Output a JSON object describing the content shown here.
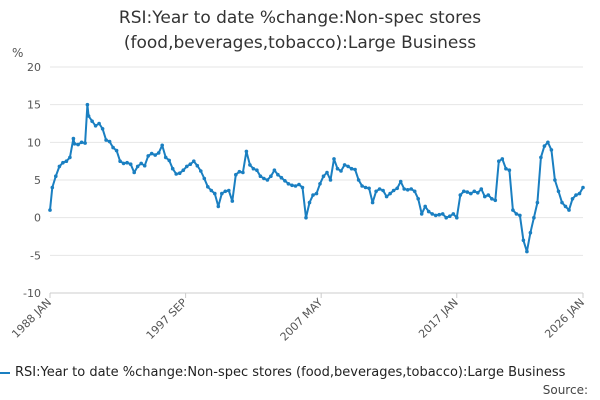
{
  "title_lines": [
    "RSI:Year to date %change:Non-spec stores",
    "(food,beverages,tobacco):Large Business"
  ],
  "source_label": "Source:",
  "colors": {
    "series": "#1a7fc1",
    "grid": "#e6e6e6",
    "axis_text": "#555555"
  },
  "chart_data": {
    "type": "line",
    "title": "RSI:Year to date %change:Non-spec stores (food,beverages,tobacco):Large Business",
    "ylabel": "%",
    "ylim": [
      -10,
      20
    ],
    "yticks": [
      -10,
      -5,
      0,
      5,
      10,
      15,
      20
    ],
    "xlim": [
      "1988-01",
      "2026-01"
    ],
    "xticks": [
      {
        "date": "1988-01",
        "label": "1988 JAN"
      },
      {
        "date": "1997-09",
        "label": "1997 SEP"
      },
      {
        "date": "2007-05",
        "label": "2007 MAY"
      },
      {
        "date": "2017-01",
        "label": "2017 JAN"
      },
      {
        "date": "2026-01",
        "label": "2026 JAN"
      }
    ],
    "grid": true,
    "legend_position": "bottom",
    "series": [
      {
        "name": "RSI:Year to date %change:Non-spec stores (food,beverages,tobacco):Large Business",
        "color": "#1a7fc1",
        "points": [
          [
            "1988-01",
            1.0
          ],
          [
            "1988-03",
            4.0
          ],
          [
            "1988-06",
            5.5
          ],
          [
            "1988-09",
            6.8
          ],
          [
            "1988-12",
            7.3
          ],
          [
            "1989-03",
            7.5
          ],
          [
            "1989-06",
            8.0
          ],
          [
            "1989-09",
            10.5
          ],
          [
            "1989-10",
            9.8
          ],
          [
            "1990-01",
            9.7
          ],
          [
            "1990-04",
            10.0
          ],
          [
            "1990-07",
            9.9
          ],
          [
            "1990-09",
            15.0
          ],
          [
            "1990-10",
            13.5
          ],
          [
            "1991-01",
            12.8
          ],
          [
            "1991-04",
            12.2
          ],
          [
            "1991-07",
            12.5
          ],
          [
            "1991-10",
            11.8
          ],
          [
            "1992-01",
            10.3
          ],
          [
            "1992-04",
            10.1
          ],
          [
            "1992-07",
            9.3
          ],
          [
            "1992-10",
            8.9
          ],
          [
            "1993-01",
            7.5
          ],
          [
            "1993-04",
            7.2
          ],
          [
            "1993-07",
            7.3
          ],
          [
            "1993-10",
            7.1
          ],
          [
            "1994-01",
            6.0
          ],
          [
            "1994-04",
            6.8
          ],
          [
            "1994-07",
            7.2
          ],
          [
            "1994-10",
            6.9
          ],
          [
            "1995-01",
            8.2
          ],
          [
            "1995-04",
            8.5
          ],
          [
            "1995-07",
            8.3
          ],
          [
            "1995-10",
            8.6
          ],
          [
            "1996-01",
            9.6
          ],
          [
            "1996-04",
            8.0
          ],
          [
            "1996-07",
            7.6
          ],
          [
            "1996-10",
            6.5
          ],
          [
            "1997-01",
            5.8
          ],
          [
            "1997-04",
            5.9
          ],
          [
            "1997-07",
            6.3
          ],
          [
            "1997-10",
            6.8
          ],
          [
            "1998-01",
            7.1
          ],
          [
            "1998-04",
            7.5
          ],
          [
            "1998-07",
            6.9
          ],
          [
            "1998-10",
            6.2
          ],
          [
            "1999-01",
            5.2
          ],
          [
            "1999-04",
            4.1
          ],
          [
            "1999-07",
            3.6
          ],
          [
            "1999-10",
            3.2
          ],
          [
            "2000-01",
            1.5
          ],
          [
            "2000-04",
            3.2
          ],
          [
            "2000-07",
            3.5
          ],
          [
            "2000-10",
            3.6
          ],
          [
            "2001-01",
            2.2
          ],
          [
            "2001-04",
            5.7
          ],
          [
            "2001-07",
            6.1
          ],
          [
            "2001-10",
            6.0
          ],
          [
            "2002-01",
            8.8
          ],
          [
            "2002-04",
            7.0
          ],
          [
            "2002-07",
            6.5
          ],
          [
            "2002-10",
            6.3
          ],
          [
            "2003-01",
            5.5
          ],
          [
            "2003-04",
            5.2
          ],
          [
            "2003-07",
            5.0
          ],
          [
            "2003-10",
            5.5
          ],
          [
            "2004-01",
            6.3
          ],
          [
            "2004-04",
            5.7
          ],
          [
            "2004-07",
            5.3
          ],
          [
            "2004-10",
            4.9
          ],
          [
            "2005-01",
            4.5
          ],
          [
            "2005-04",
            4.3
          ],
          [
            "2005-07",
            4.2
          ],
          [
            "2005-10",
            4.4
          ],
          [
            "2006-01",
            4.0
          ],
          [
            "2006-04",
            0.0
          ],
          [
            "2006-07",
            2.0
          ],
          [
            "2006-10",
            3.0
          ],
          [
            "2007-01",
            3.2
          ],
          [
            "2007-04",
            4.5
          ],
          [
            "2007-07",
            5.5
          ],
          [
            "2007-10",
            6.0
          ],
          [
            "2008-01",
            5.0
          ],
          [
            "2008-04",
            7.8
          ],
          [
            "2008-07",
            6.5
          ],
          [
            "2008-10",
            6.2
          ],
          [
            "2009-01",
            7.0
          ],
          [
            "2009-04",
            6.8
          ],
          [
            "2009-07",
            6.5
          ],
          [
            "2009-10",
            6.4
          ],
          [
            "2010-01",
            5.0
          ],
          [
            "2010-04",
            4.2
          ],
          [
            "2010-07",
            4.0
          ],
          [
            "2010-10",
            3.9
          ],
          [
            "2011-01",
            2.0
          ],
          [
            "2011-04",
            3.5
          ],
          [
            "2011-07",
            3.8
          ],
          [
            "2011-10",
            3.6
          ],
          [
            "2012-01",
            2.8
          ],
          [
            "2012-04",
            3.2
          ],
          [
            "2012-07",
            3.6
          ],
          [
            "2012-10",
            3.9
          ],
          [
            "2013-01",
            4.8
          ],
          [
            "2013-04",
            3.8
          ],
          [
            "2013-07",
            3.7
          ],
          [
            "2013-10",
            3.8
          ],
          [
            "2014-01",
            3.5
          ],
          [
            "2014-04",
            2.5
          ],
          [
            "2014-07",
            0.5
          ],
          [
            "2014-10",
            1.5
          ],
          [
            "2015-01",
            0.8
          ],
          [
            "2015-04",
            0.5
          ],
          [
            "2015-07",
            0.3
          ],
          [
            "2015-10",
            0.4
          ],
          [
            "2016-01",
            0.5
          ],
          [
            "2016-04",
            0.0
          ],
          [
            "2016-07",
            0.2
          ],
          [
            "2016-10",
            0.5
          ],
          [
            "2017-01",
            0.0
          ],
          [
            "2017-04",
            3.0
          ],
          [
            "2017-07",
            3.5
          ],
          [
            "2017-10",
            3.4
          ],
          [
            "2018-01",
            3.2
          ],
          [
            "2018-04",
            3.5
          ],
          [
            "2018-07",
            3.3
          ],
          [
            "2018-10",
            3.8
          ],
          [
            "2019-01",
            2.8
          ],
          [
            "2019-04",
            3.0
          ],
          [
            "2019-07",
            2.5
          ],
          [
            "2019-10",
            2.3
          ],
          [
            "2020-01",
            7.5
          ],
          [
            "2020-04",
            7.8
          ],
          [
            "2020-07",
            6.5
          ],
          [
            "2020-10",
            6.3
          ],
          [
            "2021-01",
            1.0
          ],
          [
            "2021-04",
            0.5
          ],
          [
            "2021-07",
            0.3
          ],
          [
            "2021-10",
            -3.0
          ],
          [
            "2022-01",
            -4.5
          ],
          [
            "2022-04",
            -2.0
          ],
          [
            "2022-07",
            0.0
          ],
          [
            "2022-10",
            2.0
          ],
          [
            "2023-01",
            8.0
          ],
          [
            "2023-04",
            9.5
          ],
          [
            "2023-07",
            10.0
          ],
          [
            "2023-10",
            9.0
          ],
          [
            "2024-01",
            5.0
          ],
          [
            "2024-04",
            3.5
          ],
          [
            "2024-07",
            2.0
          ],
          [
            "2024-10",
            1.5
          ],
          [
            "2025-01",
            1.0
          ],
          [
            "2025-04",
            2.5
          ],
          [
            "2025-07",
            3.0
          ],
          [
            "2025-10",
            3.2
          ],
          [
            "2026-01",
            4.0
          ]
        ]
      }
    ]
  }
}
